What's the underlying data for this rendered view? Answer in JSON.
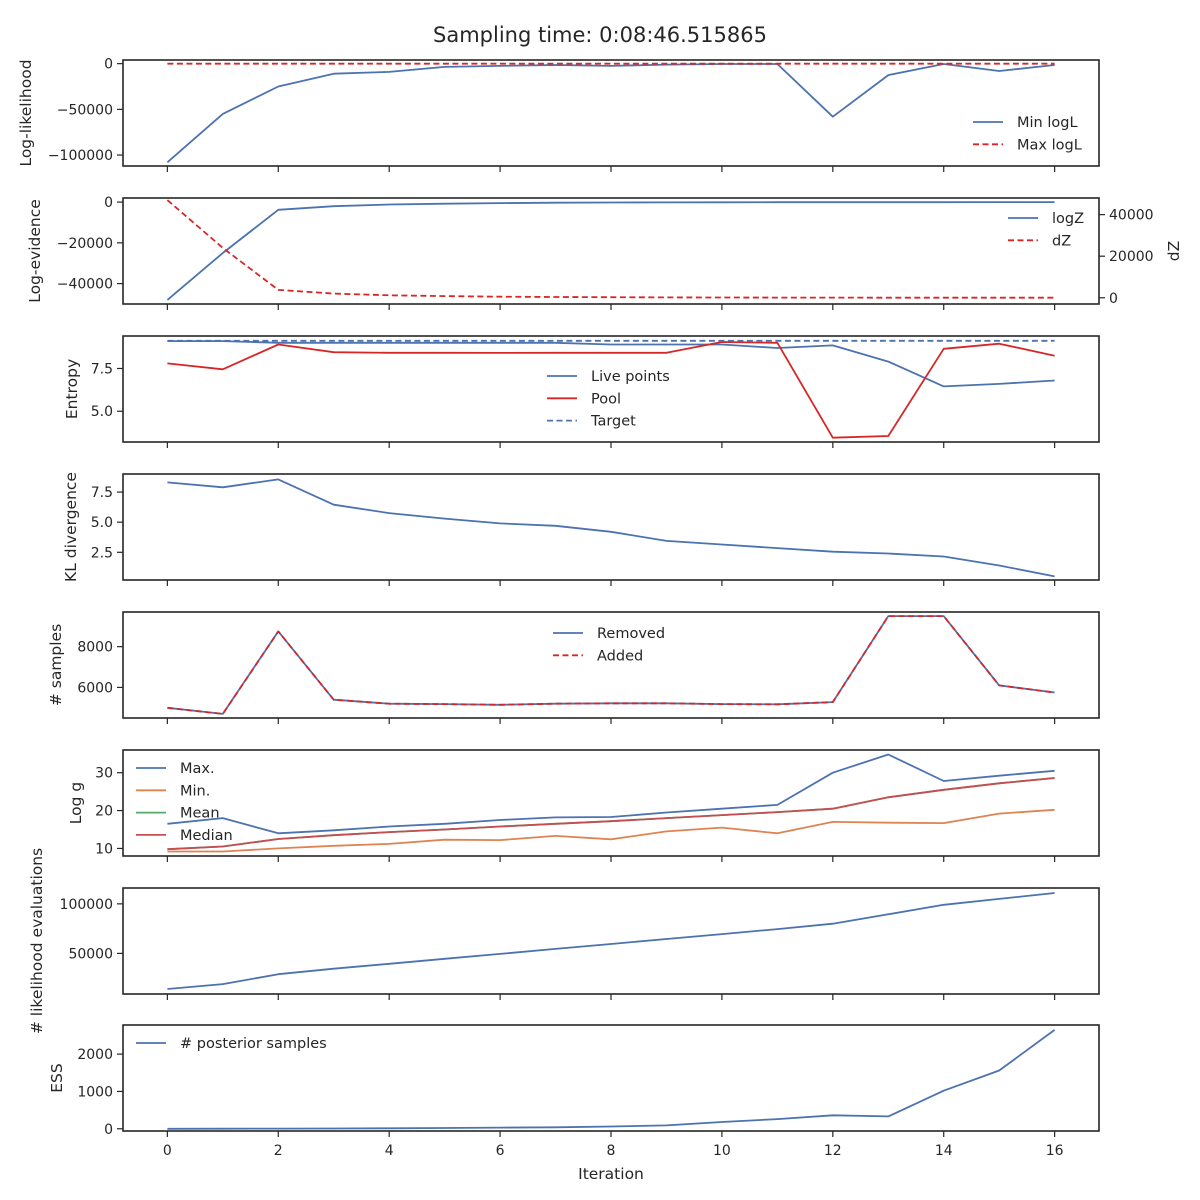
{
  "title": "Sampling time: 0:08:46.515865",
  "xlabel": "Iteration",
  "chart_data": [
    {
      "type": "line",
      "ylabel": "Log-likelihood",
      "x": [
        0,
        1,
        2,
        3,
        4,
        5,
        6,
        7,
        8,
        9,
        10,
        11,
        12,
        13,
        14,
        15,
        16
      ],
      "ylim": [
        -112000,
        4000
      ],
      "yticks": [
        0,
        -50000,
        -100000
      ],
      "ytick_labels": [
        "0",
        "−50000",
        "−100000"
      ],
      "legend_loc": "lower-right",
      "series": [
        {
          "name": "Min logL",
          "color": "#4c72b0",
          "dash": false,
          "values": [
            -108000,
            -55000,
            -25000,
            -11000,
            -9000,
            -3500,
            -2500,
            -1500,
            -2500,
            -1000,
            -400,
            -400,
            -58000,
            -12500,
            -400,
            -8000,
            -1500
          ]
        },
        {
          "name": "Max logL",
          "color": "#d62728",
          "dash": true,
          "values": [
            0,
            0,
            0,
            0,
            0,
            0,
            0,
            0,
            0,
            0,
            0,
            0,
            0,
            0,
            0,
            0,
            0
          ]
        }
      ]
    },
    {
      "type": "line",
      "ylabel": "Log-evidence",
      "ylabel_right": "dZ",
      "x": [
        0,
        1,
        2,
        3,
        4,
        5,
        6,
        7,
        8,
        9,
        10,
        11,
        12,
        13,
        14,
        15,
        16
      ],
      "ylim": [
        -50000,
        2000
      ],
      "yticks": [
        0,
        -20000,
        -40000
      ],
      "ytick_labels": [
        "0",
        "−20000",
        "−40000"
      ],
      "ylim_right": [
        -3000,
        48000
      ],
      "yticks_right": [
        0,
        20000,
        40000
      ],
      "ytick_labels_right": [
        "0",
        "20000",
        "40000"
      ],
      "legend_loc": "upper-right",
      "series": [
        {
          "name": "logZ",
          "color": "#4c72b0",
          "dash": false,
          "axis": "left",
          "values": [
            -48000,
            -25000,
            -3800,
            -2000,
            -1200,
            -800,
            -500,
            -300,
            -200,
            -150,
            -100,
            -80,
            -60,
            -50,
            -40,
            -30,
            -25
          ]
        },
        {
          "name": "dZ",
          "color": "#d62728",
          "dash": true,
          "axis": "right",
          "values": [
            47000,
            24000,
            3800,
            2000,
            1200,
            800,
            500,
            350,
            250,
            180,
            130,
            100,
            70,
            50,
            40,
            30,
            20
          ]
        }
      ]
    },
    {
      "type": "line",
      "ylabel": "Entropy",
      "x": [
        0,
        1,
        2,
        3,
        4,
        5,
        6,
        7,
        8,
        9,
        10,
        11,
        12,
        13,
        14,
        15,
        16
      ],
      "ylim": [
        3.2,
        9.4
      ],
      "yticks": [
        5.0,
        7.5
      ],
      "ytick_labels": [
        "5.0",
        "7.5"
      ],
      "legend_loc": "center",
      "series": [
        {
          "name": "Live points",
          "color": "#4c72b0",
          "dash": false,
          "values": [
            9.1,
            9.1,
            9.0,
            9.0,
            9.0,
            9.0,
            9.0,
            9.0,
            8.9,
            8.9,
            8.9,
            8.7,
            8.85,
            7.9,
            6.45,
            6.6,
            6.8
          ]
        },
        {
          "name": "Pool",
          "color": "#d62728",
          "dash": false,
          "values": [
            7.8,
            7.45,
            8.9,
            8.45,
            8.42,
            8.42,
            8.41,
            8.42,
            8.42,
            8.42,
            9.05,
            9.0,
            3.45,
            3.55,
            8.65,
            8.95,
            8.25
          ]
        },
        {
          "name": "Target",
          "color": "#4c72b0",
          "dash": true,
          "values": [
            9.12,
            9.12,
            9.12,
            9.12,
            9.12,
            9.12,
            9.12,
            9.12,
            9.12,
            9.12,
            9.12,
            9.12,
            9.12,
            9.12,
            9.12,
            9.12,
            9.12
          ]
        }
      ]
    },
    {
      "type": "line",
      "ylabel": "KL divergence",
      "x": [
        0,
        1,
        2,
        3,
        4,
        5,
        6,
        7,
        8,
        9,
        10,
        11,
        12,
        13,
        14,
        15,
        16
      ],
      "ylim": [
        0.2,
        9.0
      ],
      "yticks": [
        2.5,
        5.0,
        7.5
      ],
      "ytick_labels": [
        "2.5",
        "5.0",
        "7.5"
      ],
      "legend_loc": "none",
      "series": [
        {
          "name": "",
          "color": "#4c72b0",
          "dash": false,
          "values": [
            8.3,
            7.9,
            8.55,
            6.45,
            5.75,
            5.3,
            4.9,
            4.7,
            4.2,
            3.45,
            3.15,
            2.85,
            2.55,
            2.4,
            2.15,
            1.4,
            0.5
          ]
        }
      ]
    },
    {
      "type": "line",
      "ylabel": "# samples",
      "x": [
        0,
        1,
        2,
        3,
        4,
        5,
        6,
        7,
        8,
        9,
        10,
        11,
        12,
        13,
        14,
        15,
        16
      ],
      "ylim": [
        4500,
        9700
      ],
      "yticks": [
        6000,
        8000
      ],
      "ytick_labels": [
        "6000",
        "8000"
      ],
      "legend_loc": "upper-center",
      "series": [
        {
          "name": "Removed",
          "color": "#4c72b0",
          "dash": false,
          "values": [
            5000,
            4700,
            8750,
            5400,
            5200,
            5180,
            5150,
            5200,
            5220,
            5220,
            5180,
            5170,
            5280,
            9500,
            9500,
            6100,
            5750
          ]
        },
        {
          "name": "Added",
          "color": "#d62728",
          "dash": true,
          "values": [
            5000,
            4700,
            8750,
            5400,
            5200,
            5180,
            5150,
            5200,
            5220,
            5220,
            5180,
            5170,
            5280,
            9500,
            9500,
            6100,
            5750
          ]
        }
      ]
    },
    {
      "type": "line",
      "ylabel": "Log g",
      "x": [
        0,
        1,
        2,
        3,
        4,
        5,
        6,
        7,
        8,
        9,
        10,
        11,
        12,
        13,
        14,
        15,
        16
      ],
      "ylim": [
        8,
        36
      ],
      "yticks": [
        10,
        20,
        30
      ],
      "ytick_labels": [
        "10",
        "20",
        "30"
      ],
      "legend_loc": "upper-left",
      "series": [
        {
          "name": "Max.",
          "color": "#4c72b0",
          "dash": false,
          "values": [
            16.5,
            18.0,
            14.0,
            14.8,
            15.8,
            16.5,
            17.5,
            18.2,
            18.3,
            19.5,
            20.5,
            21.5,
            30.0,
            34.8,
            27.8,
            29.2,
            30.5
          ]
        },
        {
          "name": "Min.",
          "color": "#dd8452",
          "dash": false,
          "values": [
            9.2,
            9.2,
            10.0,
            10.7,
            11.2,
            12.3,
            12.2,
            13.3,
            12.4,
            14.5,
            15.5,
            14.0,
            17.0,
            16.8,
            16.7,
            19.2,
            20.2
          ]
        },
        {
          "name": "Mean",
          "color": "#55a868",
          "dash": false,
          "values": [
            9.8,
            10.5,
            12.5,
            13.5,
            14.3,
            15.0,
            15.8,
            16.5,
            17.2,
            18.0,
            18.8,
            19.6,
            20.5,
            23.5,
            25.5,
            27.2,
            28.6
          ]
        },
        {
          "name": "Median",
          "color": "#c44e52",
          "dash": false,
          "values": [
            9.8,
            10.5,
            12.5,
            13.5,
            14.3,
            15.0,
            15.8,
            16.5,
            17.2,
            18.0,
            18.8,
            19.6,
            20.5,
            23.5,
            25.5,
            27.2,
            28.6
          ]
        }
      ]
    },
    {
      "type": "line",
      "ylabel": "# likelihood evaluations",
      "x": [
        0,
        1,
        2,
        3,
        4,
        5,
        6,
        7,
        8,
        9,
        10,
        11,
        12,
        13,
        14,
        15,
        16
      ],
      "ylim": [
        9000,
        116000
      ],
      "yticks": [
        50000,
        100000
      ],
      "ytick_labels": [
        "50000",
        "100000"
      ],
      "legend_loc": "none",
      "series": [
        {
          "name": "",
          "color": "#4c72b0",
          "dash": false,
          "values": [
            14000,
            19000,
            29000,
            34500,
            39500,
            44500,
            49500,
            54500,
            59500,
            64500,
            69500,
            74500,
            80000,
            89500,
            99000,
            105000,
            111000
          ]
        }
      ]
    },
    {
      "type": "line",
      "ylabel": "ESS",
      "x": [
        0,
        1,
        2,
        3,
        4,
        5,
        6,
        7,
        8,
        9,
        10,
        11,
        12,
        13,
        14,
        15,
        16
      ],
      "ylim": [
        -60,
        2780
      ],
      "yticks": [
        0,
        1000,
        2000
      ],
      "ytick_labels": [
        "0",
        "1000",
        "2000"
      ],
      "legend_loc": "upper-left",
      "series": [
        {
          "name": "# posterior samples",
          "color": "#4c72b0",
          "dash": false,
          "values": [
            0,
            2,
            5,
            8,
            12,
            20,
            30,
            40,
            60,
            90,
            180,
            260,
            360,
            330,
            1020,
            1560,
            2650
          ]
        }
      ]
    }
  ],
  "xticks": [
    0,
    2,
    4,
    6,
    8,
    10,
    12,
    14,
    16
  ],
  "xlim": [
    -0.8,
    16.8
  ]
}
